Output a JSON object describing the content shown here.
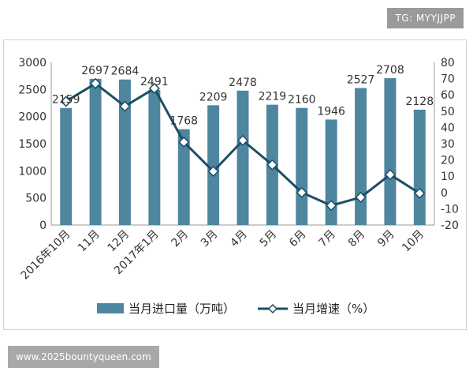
{
  "watermarks": {
    "top": "TG: MYYJJPP",
    "bottom": "www.2025bountyqueen.com"
  },
  "chart_data": {
    "type": "bar+line",
    "categories": [
      "2016年10月",
      "11月",
      "12月",
      "2017年1月",
      "2月",
      "3月",
      "4月",
      "5月",
      "6月",
      "7月",
      "8月",
      "9月",
      "10月"
    ],
    "series": [
      {
        "name": "当月进口量（万吨）",
        "type": "bar",
        "axis": "left",
        "values": [
          2159,
          2697,
          2684,
          2491,
          1768,
          2209,
          2478,
          2219,
          2160,
          1946,
          2527,
          2708,
          2128
        ]
      },
      {
        "name": "当月增速（%）",
        "type": "line",
        "axis": "right",
        "values": [
          56,
          67,
          53,
          64,
          31,
          13,
          32,
          17,
          0,
          -8,
          -3,
          11,
          -0.5
        ]
      }
    ],
    "data_labels": [
      "2159",
      "2697",
      "2684",
      "2491",
      "1768",
      "2209",
      "2478",
      "2219",
      "2160",
      "1946",
      "2527",
      "2708",
      "2128"
    ],
    "y_left": {
      "min": 0,
      "max": 3000,
      "ticks": [
        0,
        500,
        1000,
        1500,
        2000,
        2500,
        3000
      ]
    },
    "y_right": {
      "min": -20,
      "max": 80,
      "ticks": [
        -20,
        -10,
        0,
        10,
        20,
        30,
        40,
        50,
        60,
        70,
        80
      ]
    },
    "legend_position": "bottom",
    "grid": false,
    "colors": {
      "bar": "#4e86a0",
      "line": "#1d4e63",
      "marker_fill": "#ffffff"
    }
  }
}
